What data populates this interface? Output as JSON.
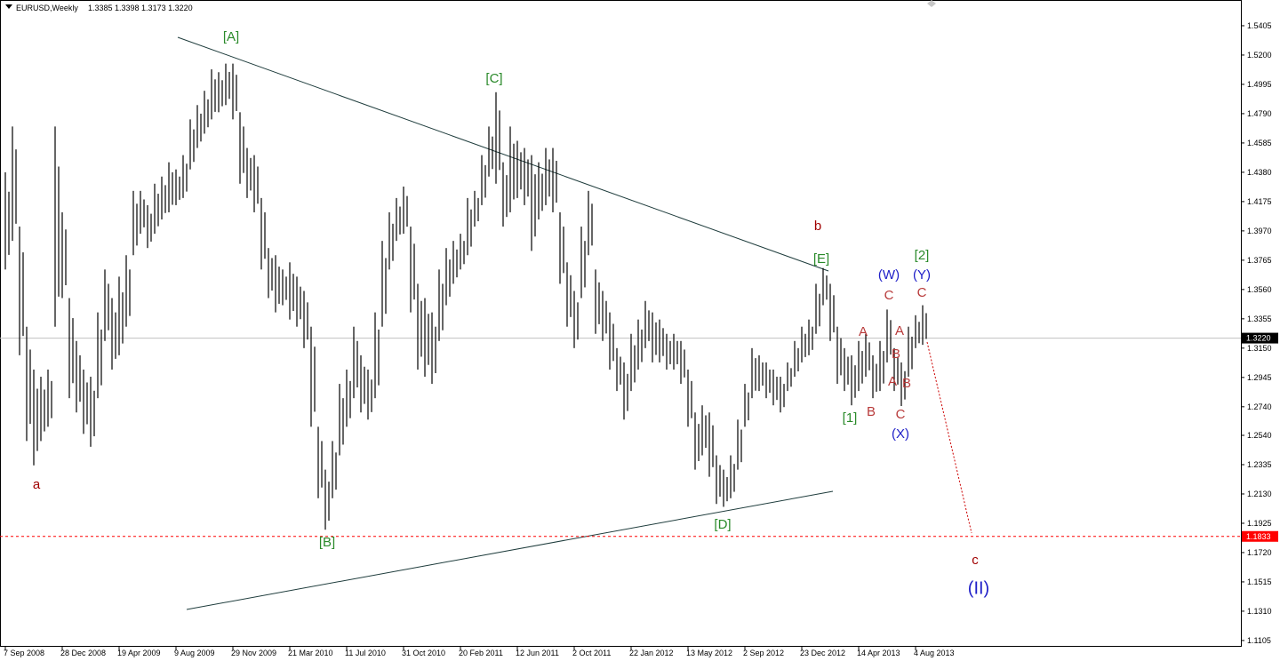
{
  "chart_data": {
    "type": "ohlc",
    "title": "EURUSD,Weekly",
    "subtitle": "1.3385 1.3398 1.3173 1.3220",
    "color": "#000000",
    "grid": false,
    "ylim": [
      1.1061,
      1.5585
    ],
    "yticks": [
      1.1105,
      {
        "value": 1.131,
        "label": "1.1310"
      },
      1.1515,
      {
        "value": 1.172,
        "label": "1.1720"
      },
      1.1925,
      {
        "value": 1.213,
        "label": "1.2130"
      },
      1.2335,
      {
        "value": 1.254,
        "label": "1.2540"
      },
      {
        "value": 1.274,
        "label": "1.2740"
      },
      1.2945,
      {
        "value": 1.315,
        "label": "1.3150"
      },
      1.3355,
      {
        "value": 1.356,
        "label": "1.3560"
      },
      1.3765,
      {
        "value": 1.397,
        "label": "1.3970"
      },
      1.4175,
      {
        "value": 1.438,
        "label": "1.4380"
      },
      1.4585,
      {
        "value": 1.479,
        "label": "1.4790"
      },
      1.4995,
      {
        "value": 1.52,
        "label": "1.5200"
      },
      1.5405
    ],
    "categories": [
      "7 Sep 2008",
      null,
      null,
      null,
      null,
      null,
      null,
      null,
      "28 Dec 2008",
      null,
      null,
      null,
      null,
      null,
      null,
      null,
      "19 Apr 2009",
      null,
      null,
      null,
      null,
      null,
      null,
      null,
      "9 Aug 2009",
      null,
      null,
      null,
      null,
      null,
      null,
      null,
      "29 Nov 2009",
      null,
      null,
      null,
      null,
      null,
      null,
      null,
      "21 Mar 2010",
      null,
      null,
      null,
      null,
      null,
      null,
      null,
      "11 Jul 2010",
      null,
      null,
      null,
      null,
      null,
      null,
      null,
      "31 Oct 2010",
      null,
      null,
      null,
      null,
      null,
      null,
      null,
      "20 Feb 2011",
      null,
      null,
      null,
      null,
      null,
      null,
      null,
      "12 Jun 2011",
      null,
      null,
      null,
      null,
      null,
      null,
      null,
      "2 Oct 2011",
      null,
      null,
      null,
      null,
      null,
      null,
      null,
      "22 Jan 2012",
      null,
      null,
      null,
      null,
      null,
      null,
      null,
      "13 May 2012",
      null,
      null,
      null,
      null,
      null,
      null,
      null,
      "2 Sep 2012",
      null,
      null,
      null,
      null,
      null,
      null,
      null,
      "23 Dec 2012",
      null,
      null,
      null,
      null,
      null,
      null,
      null,
      "14 Apr 2013",
      null,
      null,
      null,
      null,
      null,
      null,
      null,
      "4 Aug 2013",
      null
    ],
    "high": [
      1.438,
      1.47,
      1.4,
      1.33,
      1.3,
      1.295,
      1.3,
      1.47,
      1.41,
      1.35,
      1.32,
      1.3,
      1.295,
      1.34,
      1.37,
      1.35,
      1.365,
      1.38,
      1.425,
      1.425,
      1.415,
      1.43,
      1.435,
      1.445,
      1.44,
      1.45,
      1.475,
      1.485,
      1.495,
      1.51,
      1.508,
      1.514,
      1.514,
      1.48,
      1.455,
      1.45,
      1.42,
      1.385,
      1.38,
      1.37,
      1.375,
      1.365,
      1.355,
      1.33,
      1.26,
      1.23,
      1.25,
      1.29,
      1.3,
      1.33,
      1.31,
      1.3,
      1.34,
      1.39,
      1.41,
      1.42,
      1.428,
      1.4,
      1.36,
      1.35,
      1.34,
      1.37,
      1.385,
      1.39,
      1.395,
      1.42,
      1.425,
      1.45,
      1.47,
      1.494,
      1.445,
      1.47,
      1.46,
      1.455,
      1.45,
      1.445,
      1.455,
      1.455,
      1.41,
      1.375,
      1.355,
      1.4,
      1.425,
      1.37,
      1.355,
      1.34,
      1.315,
      1.305,
      1.325,
      1.335,
      1.348,
      1.34,
      1.335,
      1.325,
      1.325,
      1.32,
      1.3,
      1.27,
      1.275,
      1.27,
      1.24,
      1.23,
      1.24,
      1.265,
      1.29,
      1.315,
      1.31,
      1.305,
      1.3,
      1.295,
      1.305,
      1.32,
      1.33,
      1.335,
      1.36,
      1.371,
      1.36,
      1.33,
      1.315,
      1.31,
      1.32,
      1.325,
      1.31,
      1.32,
      1.342,
      1.315,
      1.305,
      1.33,
      1.338,
      1.345
    ],
    "low": [
      1.37,
      1.39,
      1.31,
      1.25,
      1.233,
      1.25,
      1.26,
      1.33,
      1.35,
      1.28,
      1.27,
      1.255,
      1.246,
      1.28,
      1.32,
      1.3,
      1.31,
      1.33,
      1.38,
      1.395,
      1.385,
      1.395,
      1.405,
      1.41,
      1.415,
      1.42,
      1.44,
      1.455,
      1.465,
      1.475,
      1.48,
      1.485,
      1.475,
      1.43,
      1.42,
      1.41,
      1.37,
      1.35,
      1.34,
      1.345,
      1.335,
      1.33,
      1.315,
      1.26,
      1.21,
      1.188,
      1.21,
      1.24,
      1.26,
      1.28,
      1.27,
      1.265,
      1.28,
      1.33,
      1.37,
      1.39,
      1.395,
      1.34,
      1.3,
      1.295,
      1.29,
      1.32,
      1.345,
      1.36,
      1.37,
      1.38,
      1.4,
      1.415,
      1.435,
      1.43,
      1.4,
      1.41,
      1.42,
      1.415,
      1.383,
      1.405,
      1.415,
      1.41,
      1.36,
      1.33,
      1.315,
      1.35,
      1.38,
      1.325,
      1.32,
      1.3,
      1.285,
      1.265,
      1.285,
      1.3,
      1.315,
      1.305,
      1.305,
      1.3,
      1.3,
      1.29,
      1.26,
      1.23,
      1.24,
      1.225,
      1.206,
      1.204,
      1.21,
      1.23,
      1.26,
      1.28,
      1.285,
      1.28,
      1.275,
      1.27,
      1.285,
      1.295,
      1.305,
      1.31,
      1.325,
      1.345,
      1.32,
      1.29,
      1.285,
      1.275,
      1.285,
      1.295,
      1.28,
      1.285,
      1.305,
      1.285,
      1.2745,
      1.295,
      1.315,
      1.3173
    ],
    "price_lines": [
      {
        "value": 1.322,
        "label": "1.3220",
        "color": "#c0c0c0",
        "tag_color": "#000000",
        "dashed": false
      },
      {
        "value": 1.1833,
        "label": "1.1833",
        "color": "#ff0000",
        "tag_color": "#ff0000",
        "dashed": true
      }
    ],
    "annotations": [
      {
        "text": "[A]",
        "color": "#2a8a2a"
      },
      {
        "text": "[C]",
        "color": "#2a8a2a"
      },
      {
        "text": "[B]",
        "color": "#2a8a2a"
      },
      {
        "text": "[D]",
        "color": "#2a8a2a"
      },
      {
        "text": "[E]",
        "color": "#2a8a2a"
      },
      {
        "text": "b",
        "color": "#a00000"
      },
      {
        "text": "a",
        "color": "#a00000"
      },
      {
        "text": "[1]",
        "color": "#2a8a2a"
      },
      {
        "text": "[2]",
        "color": "#2a8a2a"
      },
      {
        "text": "(W)",
        "color": "#2020c8"
      },
      {
        "text": "(Y)",
        "color": "#2020c8"
      },
      {
        "text": "(X)",
        "color": "#2020c8"
      },
      {
        "text": "C",
        "color": "#b83a3a"
      },
      {
        "text": "C",
        "color": "#b83a3a"
      },
      {
        "text": "A",
        "color": "#b83a3a"
      },
      {
        "text": "B",
        "color": "#b83a3a"
      },
      {
        "text": "A",
        "color": "#b83a3a"
      },
      {
        "text": "B",
        "color": "#b83a3a"
      },
      {
        "text": "A",
        "color": "#b83a3a"
      },
      {
        "text": "B",
        "color": "#b83a3a"
      },
      {
        "text": "C",
        "color": "#b83a3a"
      },
      {
        "text": "c",
        "color": "#a00000"
      },
      {
        "text": "(II)",
        "color": "#2020c8"
      }
    ]
  }
}
